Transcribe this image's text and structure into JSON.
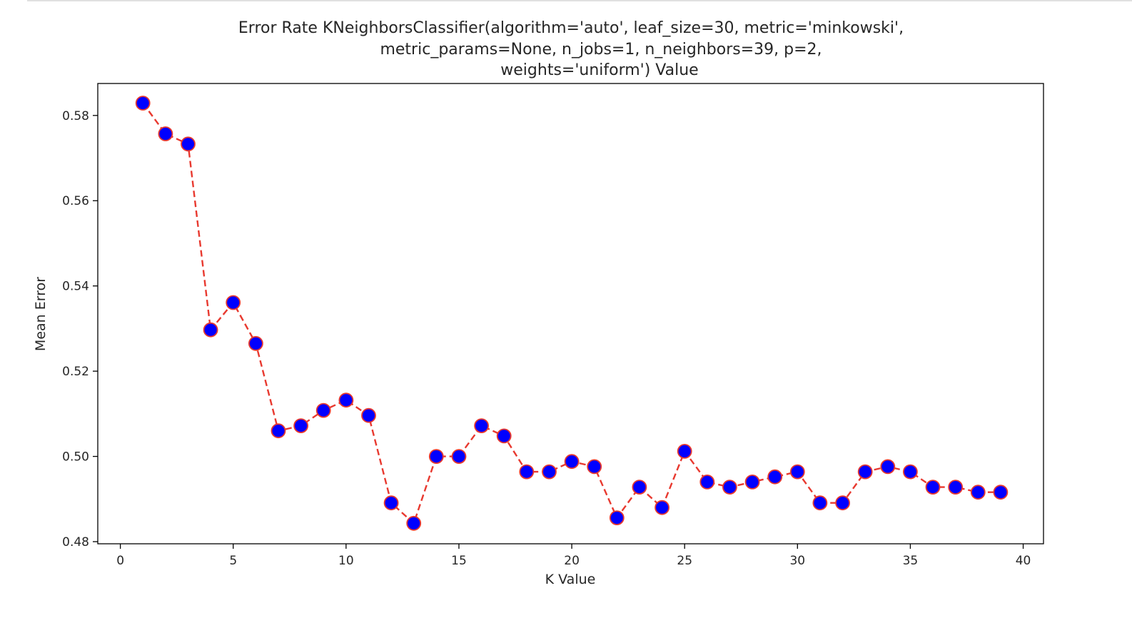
{
  "chart_data": {
    "type": "line",
    "title_lines": [
      "Error Rate KNeighborsClassifier(algorithm='auto', leaf_size=30, metric='minkowski',",
      "metric_params=None, n_jobs=1, n_neighbors=39, p=2,",
      "weights='uniform') Value"
    ],
    "xlabel": "K Value",
    "ylabel": "Mean Error",
    "xlim": [
      -1,
      40.9
    ],
    "ylim": [
      0.4795,
      0.5875
    ],
    "xticks": [
      0,
      5,
      10,
      15,
      20,
      25,
      30,
      35,
      40
    ],
    "yticks": [
      0.48,
      0.5,
      0.52,
      0.54,
      0.56,
      0.58
    ],
    "ytick_labels": [
      "0.48",
      "0.50",
      "0.52",
      "0.54",
      "0.56",
      "0.58"
    ],
    "grid": false,
    "line_color": "#e8392f",
    "line_style": "dashed",
    "marker": "circle",
    "marker_face_color": "#0000ff",
    "marker_edge_color": "#e8392f",
    "series": [
      {
        "x": [
          1,
          2,
          3,
          4,
          5,
          6,
          7,
          8,
          9,
          10,
          11,
          12,
          13,
          14,
          15,
          16,
          17,
          18,
          19,
          20,
          21,
          22,
          23,
          24,
          25,
          26,
          27,
          28,
          29,
          30,
          31,
          32,
          33,
          34,
          35,
          36,
          37,
          38,
          39
        ],
        "values": [
          0.5829,
          0.5757,
          0.5733,
          0.5297,
          0.5361,
          0.5265,
          0.506,
          0.5072,
          0.5108,
          0.5132,
          0.5096,
          0.4891,
          0.4843,
          0.5,
          0.5,
          0.5072,
          0.5048,
          0.4964,
          0.4964,
          0.4988,
          0.4976,
          0.4856,
          0.4928,
          0.488,
          0.5012,
          0.494,
          0.4928,
          0.494,
          0.4952,
          0.4964,
          0.4891,
          0.4891,
          0.4964,
          0.4976,
          0.4964,
          0.4928,
          0.4928,
          0.4916,
          0.4916
        ]
      }
    ]
  }
}
